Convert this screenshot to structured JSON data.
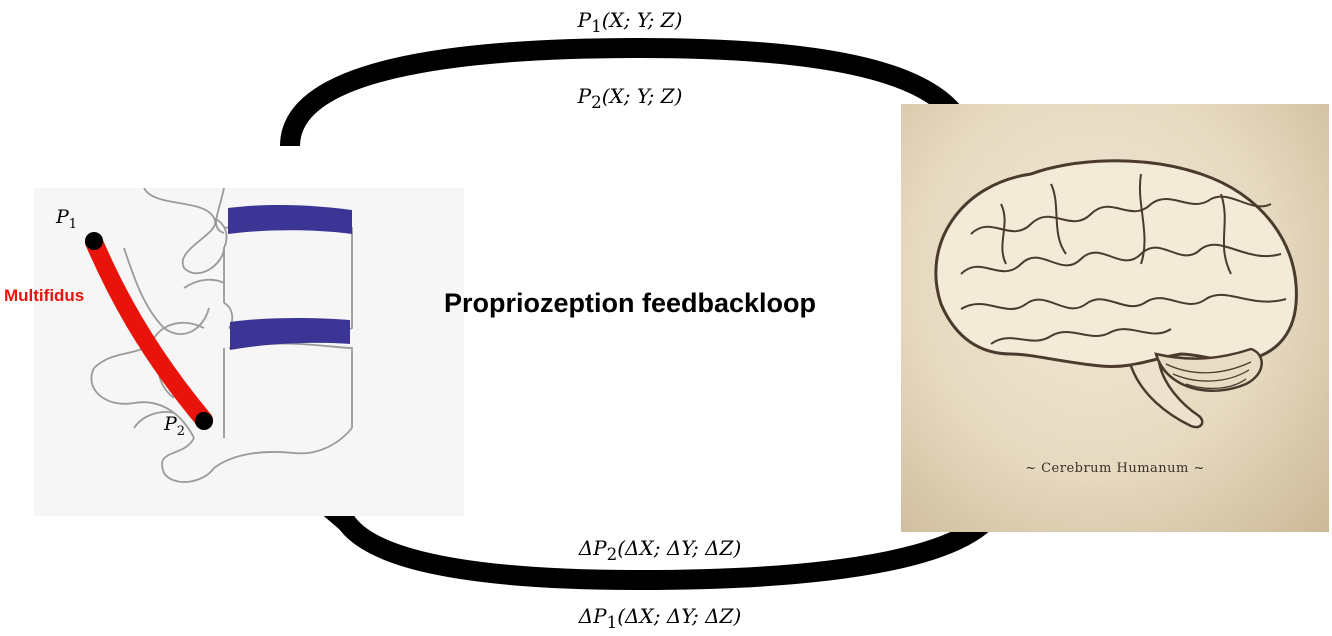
{
  "title": "Propriozeption feedbackloop",
  "top_arrow": {
    "line1": {
      "var": "P",
      "sub": "1",
      "args": "(X; Y; Z)"
    },
    "line2": {
      "var": "P",
      "sub": "2",
      "args": "(X; Y; Z)"
    }
  },
  "bottom_arrow": {
    "line1": {
      "var": "ΔP",
      "sub": "2",
      "args": "(ΔX; ΔY; ΔZ)"
    },
    "line2": {
      "var": "ΔP",
      "sub": "1",
      "args": "(ΔX; ΔY; ΔZ)"
    }
  },
  "spine": {
    "muscle_label": "Multifidus",
    "point1": {
      "var": "P",
      "sub": "1"
    },
    "point2": {
      "var": "P",
      "sub": "2"
    },
    "muscle_color": "#e8140c",
    "disc_color": "#3d3596"
  },
  "brain": {
    "caption": "~ Cerebrum Humanum ~"
  },
  "colors": {
    "arrow": "#000000",
    "background": "#ffffff"
  }
}
